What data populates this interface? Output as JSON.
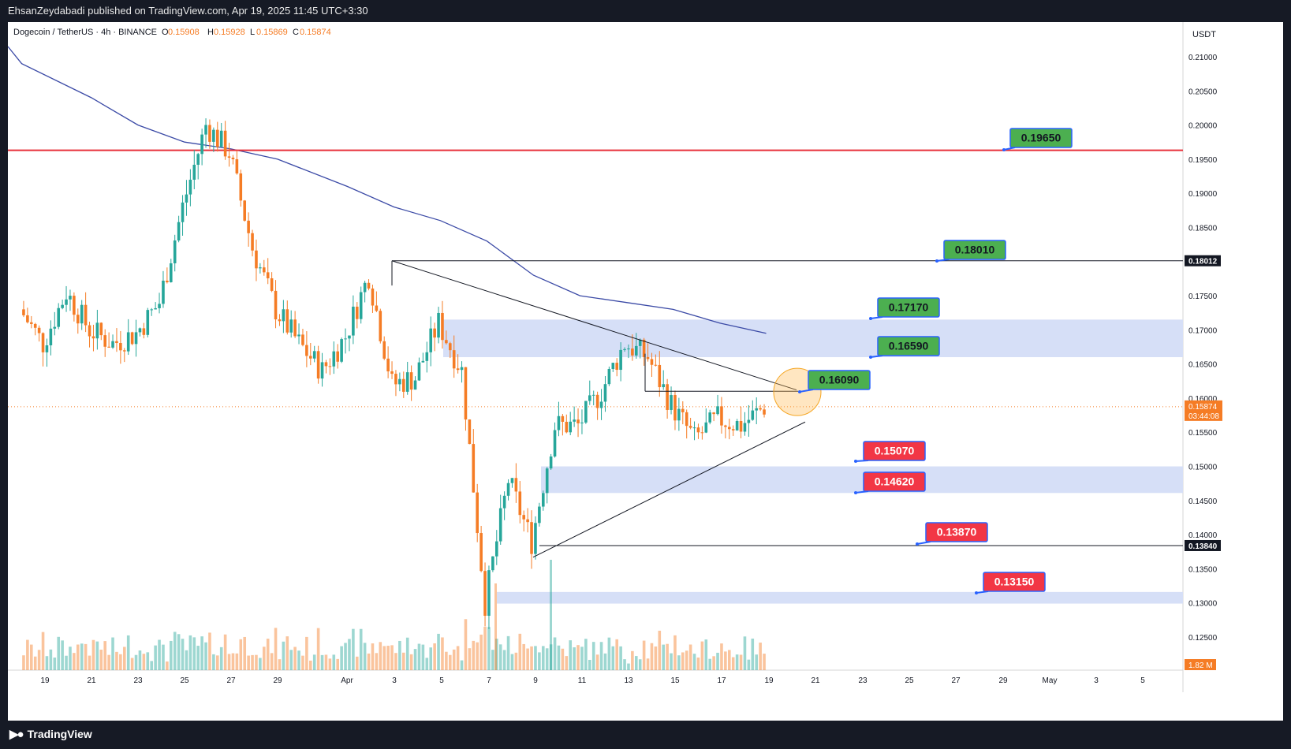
{
  "header": {
    "published_by": "EhsanZeydabadi published on TradingView.com, Apr 19, 2025 11:45 UTC+3:30"
  },
  "legend": {
    "symbol": "Dogecoin / TetherUS · 4h · BINANCE",
    "open_label": "O",
    "open": "0.15908",
    "high_label": "H",
    "high": "0.15928",
    "low_label": "L",
    "low": "0.15869",
    "close_label": "C",
    "close": "0.15874"
  },
  "price_axis": {
    "currency": "USDT",
    "current_price": "0.15874",
    "countdown": "03:44:08",
    "level_upper_tag": "0.18012",
    "level_lower_tag": "0.13840",
    "volume_tag": "1.82 M"
  },
  "branding": {
    "name": "TradingView"
  },
  "colors": {
    "bull": "#26a69a",
    "bear": "#f57c25",
    "ma": "#3b4aa6",
    "resistance_red": "#e8303a",
    "zone_fill": "#d6dff7",
    "target_green": "#4caf50",
    "target_red": "#f23645"
  },
  "chart_data": {
    "type": "candlestick",
    "title": "Dogecoin / TetherUS · 4h · BINANCE",
    "xlabel": "",
    "ylabel": "USDT",
    "ylim": [
      0.122,
      0.2145
    ],
    "x_ticks": [
      "19",
      "21",
      "23",
      "25",
      "27",
      "29",
      "Apr",
      "3",
      "5",
      "7",
      "9",
      "11",
      "13",
      "15",
      "17",
      "19",
      "21",
      "23",
      "25",
      "27",
      "29",
      "May",
      "3",
      "5"
    ],
    "y_ticks": [
      "0.21000",
      "0.20500",
      "0.20000",
      "0.19500",
      "0.19000",
      "0.18500",
      "0.18000",
      "0.17500",
      "0.17000",
      "0.16500",
      "0.16000",
      "0.15500",
      "0.15000",
      "0.14500",
      "0.14000",
      "0.13500",
      "0.13000",
      "0.12500"
    ],
    "anchors": [
      {
        "date": "Mar 18",
        "close": 0.173
      },
      {
        "date": "Mar 19",
        "close": 0.168
      },
      {
        "date": "Mar 20",
        "close": 0.1755
      },
      {
        "date": "Mar 21",
        "close": 0.17
      },
      {
        "date": "Mar 22",
        "close": 0.168
      },
      {
        "date": "Mar 23",
        "close": 0.1695
      },
      {
        "date": "Mar 24",
        "close": 0.174
      },
      {
        "date": "Mar 25",
        "close": 0.188
      },
      {
        "date": "Mar 26",
        "close": 0.2
      },
      {
        "date": "Mar 27",
        "close": 0.196
      },
      {
        "date": "Mar 28",
        "close": 0.182
      },
      {
        "date": "Mar 29",
        "close": 0.173
      },
      {
        "date": "Mar 30",
        "close": 0.168
      },
      {
        "date": "Mar 31",
        "close": 0.164
      },
      {
        "date": "Apr 1",
        "close": 0.169
      },
      {
        "date": "Apr 2",
        "close": 0.178
      },
      {
        "date": "Apr 3",
        "close": 0.162
      },
      {
        "date": "Apr 4",
        "close": 0.163
      },
      {
        "date": "Apr 5",
        "close": 0.171
      },
      {
        "date": "Apr 6",
        "close": 0.164
      },
      {
        "date": "Apr 7",
        "close": 0.13
      },
      {
        "date": "Apr 8",
        "close": 0.148
      },
      {
        "date": "Apr 9",
        "close": 0.139
      },
      {
        "date": "Apr 10",
        "close": 0.156
      },
      {
        "date": "Apr 11",
        "close": 0.156
      },
      {
        "date": "Apr 12",
        "close": 0.161
      },
      {
        "date": "Apr 13",
        "close": 0.168
      },
      {
        "date": "Apr 14",
        "close": 0.166
      },
      {
        "date": "Apr 15",
        "close": 0.159
      },
      {
        "date": "Apr 16",
        "close": 0.154
      },
      {
        "date": "Apr 17",
        "close": 0.157
      },
      {
        "date": "Apr 18",
        "close": 0.156
      },
      {
        "date": "Apr 19",
        "close": 0.1587
      }
    ],
    "moving_average": [
      {
        "date": "Mar 18",
        "value": 0.209
      },
      {
        "date": "Mar 21",
        "value": 0.204
      },
      {
        "date": "Mar 23",
        "value": 0.2
      },
      {
        "date": "Mar 25",
        "value": 0.1975
      },
      {
        "date": "Mar 27",
        "value": 0.1965
      },
      {
        "date": "Mar 29",
        "value": 0.195
      },
      {
        "date": "Apr 1",
        "value": 0.191
      },
      {
        "date": "Apr 3",
        "value": 0.188
      },
      {
        "date": "Apr 5",
        "value": 0.186
      },
      {
        "date": "Apr 7",
        "value": 0.183
      },
      {
        "date": "Apr 9",
        "value": 0.178
      },
      {
        "date": "Apr 11",
        "value": 0.175
      },
      {
        "date": "Apr 13",
        "value": 0.174
      },
      {
        "date": "Apr 15",
        "value": 0.173
      },
      {
        "date": "Apr 17",
        "value": 0.171
      },
      {
        "date": "Apr 19",
        "value": 0.1695
      }
    ],
    "horizontal_levels": [
      {
        "value": 0.1963,
        "style": "red"
      },
      {
        "value": 0.18012,
        "style": "black"
      },
      {
        "value": 0.1384,
        "style": "black"
      }
    ],
    "zones": [
      {
        "from": 0.166,
        "to": 0.1715
      },
      {
        "from": 0.1461,
        "to": 0.15
      },
      {
        "from": 0.1299,
        "to": 0.1316
      }
    ],
    "targets": [
      {
        "label": "0.19650",
        "kind": "green"
      },
      {
        "label": "0.18010",
        "kind": "green"
      },
      {
        "label": "0.17170",
        "kind": "green"
      },
      {
        "label": "0.16590",
        "kind": "green"
      },
      {
        "label": "0.16090",
        "kind": "green"
      },
      {
        "label": "0.15070",
        "kind": "red"
      },
      {
        "label": "0.14620",
        "kind": "red"
      },
      {
        "label": "0.13870",
        "kind": "red"
      },
      {
        "label": "0.13150",
        "kind": "red"
      }
    ]
  }
}
